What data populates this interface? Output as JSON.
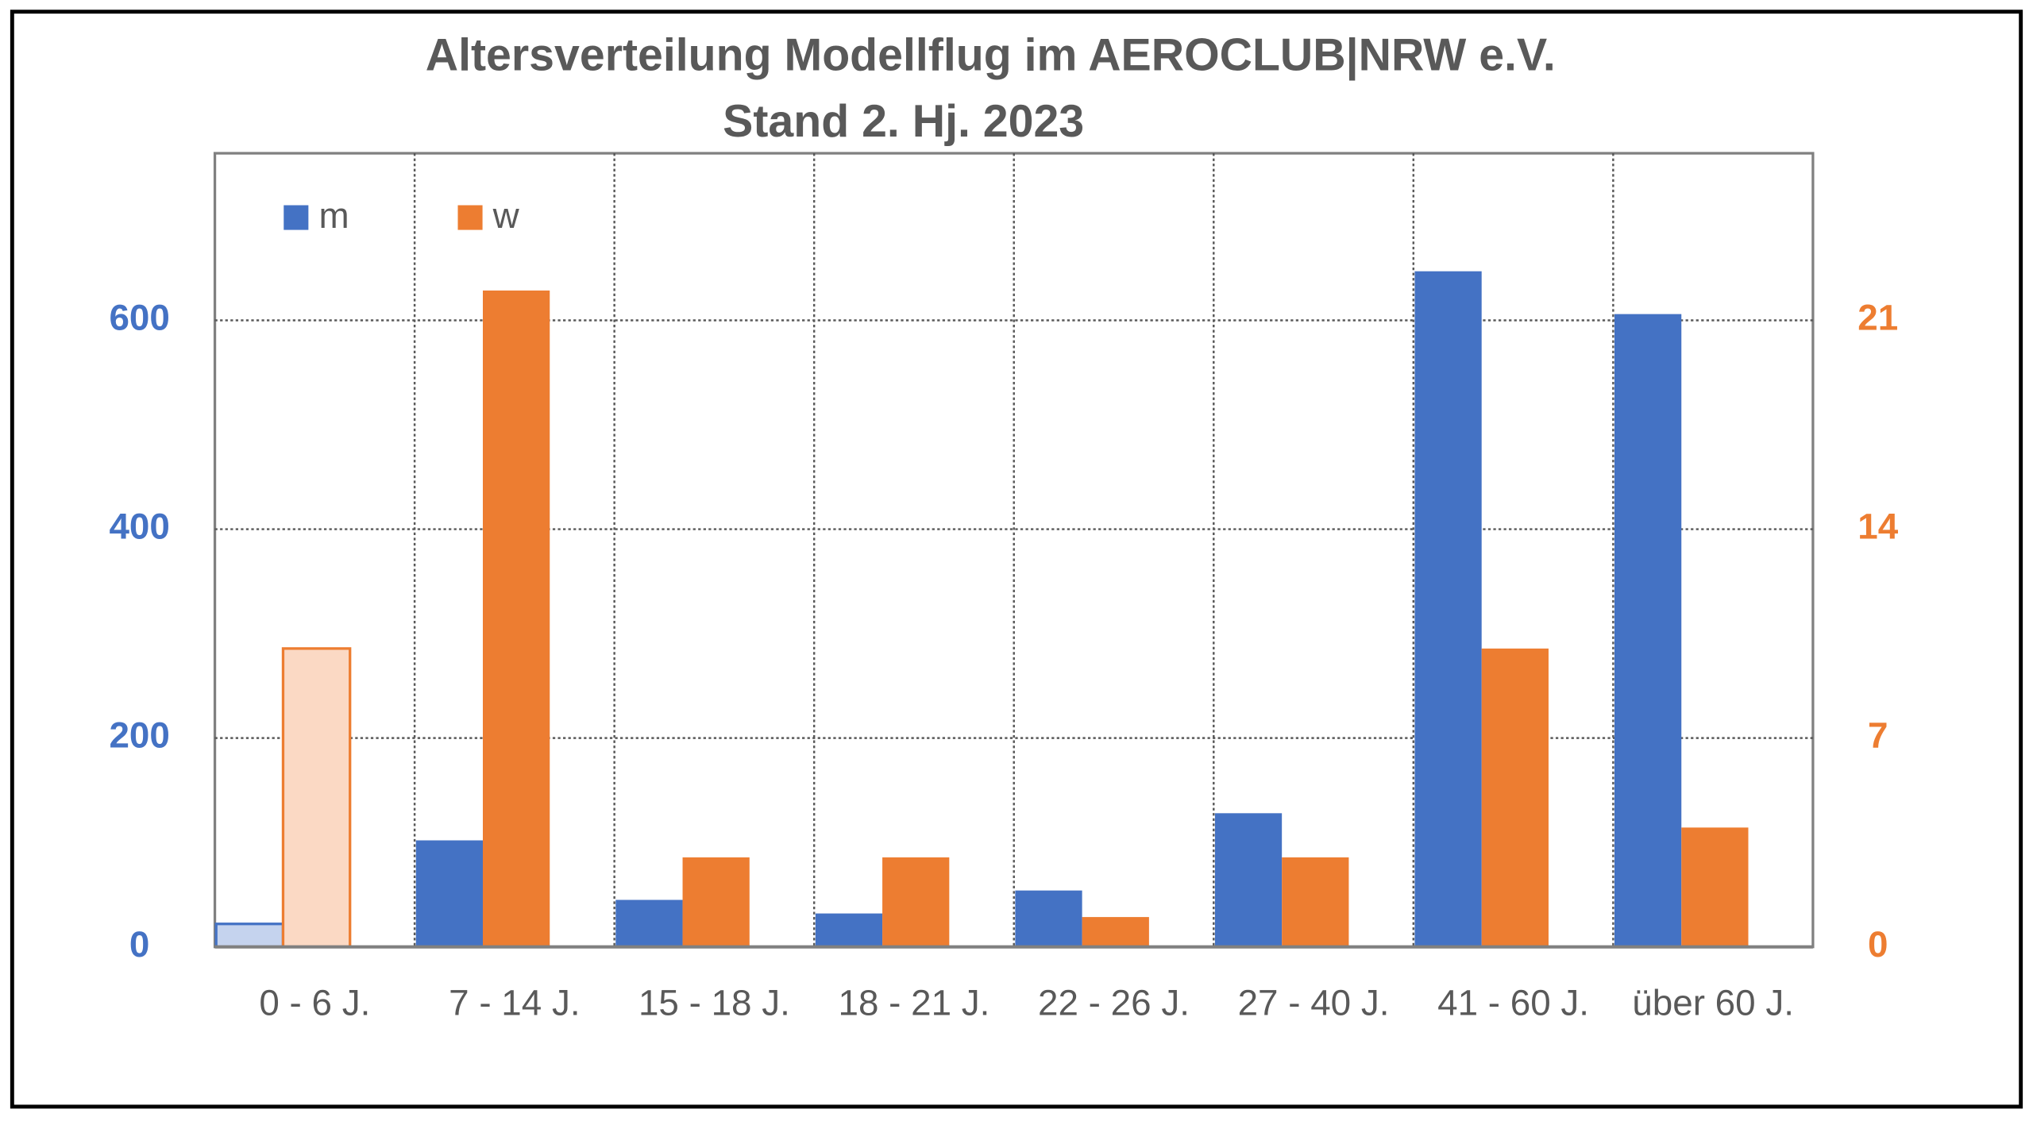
{
  "chart_data": {
    "type": "bar",
    "title": "Altersverteilung Modellflug im AEROCLUB|NRW e.V.",
    "subtitle": "Stand 2. Hj. 2023",
    "categories": [
      "0 - 6 J.",
      "7 - 14 J.",
      "15 - 18 J.",
      "18 - 21 J.",
      "22 - 26 J.",
      "27 - 40 J.",
      "41 - 60 J.",
      "über 60 J."
    ],
    "series": [
      {
        "name": "m",
        "color": "#4472c4",
        "light_color": "#c5d3ee",
        "values": [
          22,
          102,
          45,
          32,
          54,
          128,
          647,
          606
        ]
      },
      {
        "name": "w",
        "color": "#ed7d31",
        "light_color": "#fbd9c4",
        "axis": "y2",
        "values": [
          10,
          22,
          3,
          3,
          1,
          3,
          10,
          4
        ]
      }
    ],
    "light_categories": [
      0
    ],
    "ylim": [
      0,
      760
    ],
    "yticks": [
      0,
      200,
      400,
      600
    ],
    "y2lim": [
      0,
      26.6
    ],
    "y2ticks": [
      0,
      7,
      14,
      21
    ],
    "grid": true,
    "legend": "top-left"
  }
}
